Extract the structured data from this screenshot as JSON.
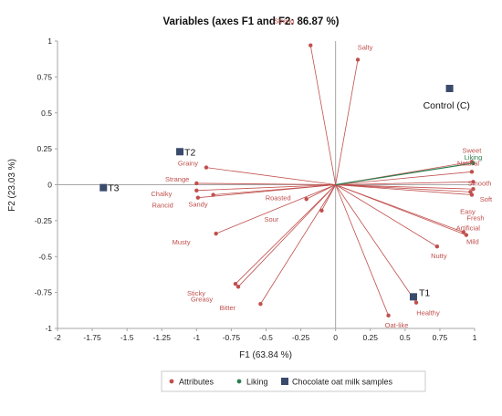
{
  "chart_data": {
    "type": "scatter",
    "title": "Variables (axes F1 and F2: 86.87 %)",
    "xlabel": "F1 (63.84 %)",
    "ylabel": "F2 (23.03 %)",
    "xlim": [
      -2,
      1
    ],
    "ylim": [
      -1,
      1
    ],
    "xticks": [
      "-2",
      "-1.75",
      "-1.5",
      "-1.25",
      "-1",
      "-0.75",
      "-0.5",
      "-0.25",
      "0",
      "0.25",
      "0.5",
      "0.75",
      "1"
    ],
    "yticks": [
      "1",
      "0.75",
      "0.5",
      "0.25",
      "0",
      "-0.25",
      "-0.5",
      "-0.75",
      "-1"
    ],
    "legend_position": "bottom",
    "colors": {
      "attributes": "#c0504d",
      "liking": "#2e7d4f",
      "samples": "#3a4a6b"
    },
    "series": [
      {
        "name": "Attributes",
        "points": [
          {
            "label": "Strong",
            "x": -0.18,
            "y": 0.97
          },
          {
            "label": "Salty",
            "x": 0.16,
            "y": 0.87
          },
          {
            "label": "Sweet",
            "x": 0.98,
            "y": 0.16
          },
          {
            "label": "Natural",
            "x": 0.98,
            "y": 0.09
          },
          {
            "label": "Smooth",
            "x": 0.99,
            "y": 0.02
          },
          {
            "label": "Soft",
            "x": 0.99,
            "y": -0.03
          },
          {
            "label": "Fresh",
            "x": 0.98,
            "y": -0.07
          },
          {
            "label": "Easy",
            "x": 0.97,
            "y": -0.05
          },
          {
            "label": "Artificial",
            "x": 0.92,
            "y": -0.33
          },
          {
            "label": "Mild",
            "x": 0.94,
            "y": -0.35
          },
          {
            "label": "Nutty",
            "x": 0.73,
            "y": -0.43
          },
          {
            "label": "Healthy",
            "x": 0.58,
            "y": -0.82
          },
          {
            "label": "Oat-like",
            "x": 0.38,
            "y": -0.91
          },
          {
            "label": "Grainy",
            "x": -0.93,
            "y": 0.12
          },
          {
            "label": "Strange",
            "x": -1.0,
            "y": 0.01
          },
          {
            "label": "Chalky",
            "x": -1.0,
            "y": -0.04
          },
          {
            "label": "Sandy",
            "x": -0.88,
            "y": -0.07
          },
          {
            "label": "Rancid",
            "x": -0.99,
            "y": -0.09
          },
          {
            "label": "Roasted",
            "x": -0.21,
            "y": -0.1
          },
          {
            "label": "Sour",
            "x": -0.1,
            "y": -0.18
          },
          {
            "label": "Musty",
            "x": -0.86,
            "y": -0.34
          },
          {
            "label": "Sticky",
            "x": -0.72,
            "y": -0.69
          },
          {
            "label": "Greasy",
            "x": -0.7,
            "y": -0.71
          },
          {
            "label": "Bitter",
            "x": -0.54,
            "y": -0.83
          }
        ]
      },
      {
        "name": "Liking",
        "points": [
          {
            "label": "Liking",
            "x": 0.99,
            "y": 0.15
          }
        ]
      },
      {
        "name": "Chocolate oat milk samples",
        "points": [
          {
            "label": "Control (C)",
            "x": 0.82,
            "y": 0.67
          },
          {
            "label": "T1",
            "x": 0.56,
            "y": -0.78
          },
          {
            "label": "T2",
            "x": -1.12,
            "y": 0.23
          },
          {
            "label": "T3",
            "x": -1.67,
            "y": -0.02
          }
        ]
      }
    ]
  }
}
